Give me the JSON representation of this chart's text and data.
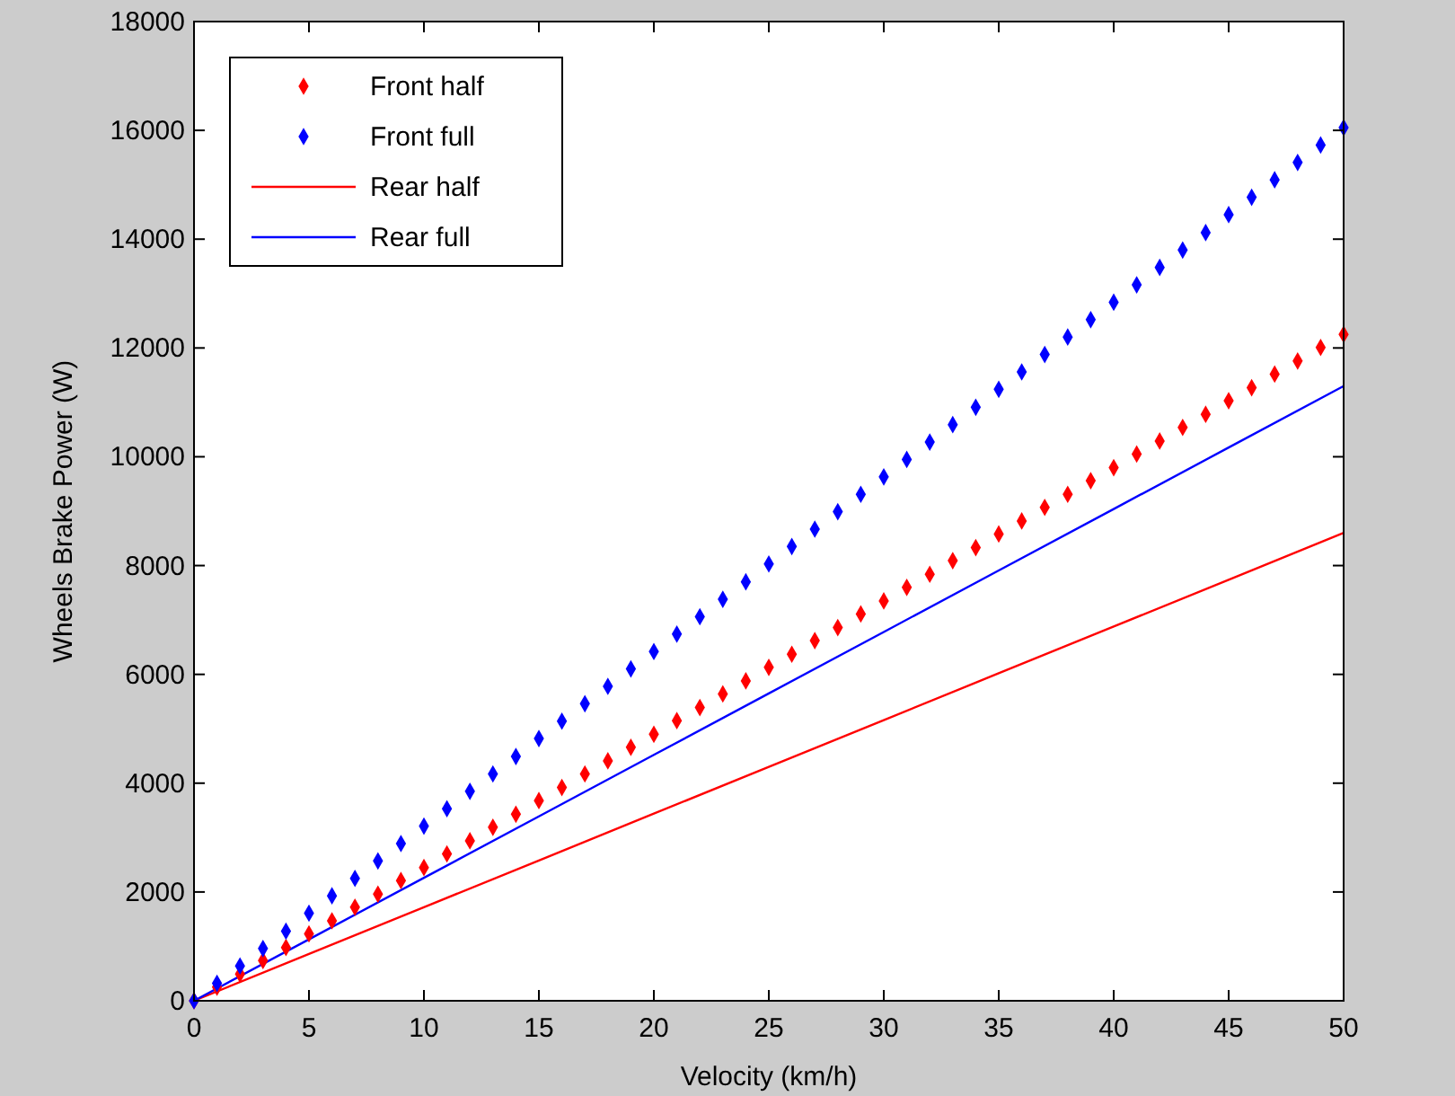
{
  "chart_data": {
    "type": "line",
    "xlabel": "Velocity (km/h)",
    "ylabel": "Wheels Brake Power (W)",
    "xlim": [
      0,
      50
    ],
    "ylim": [
      0,
      18000
    ],
    "xticks": [
      0,
      5,
      10,
      15,
      20,
      25,
      30,
      35,
      40,
      45,
      50
    ],
    "yticks": [
      0,
      2000,
      4000,
      6000,
      8000,
      10000,
      12000,
      14000,
      16000,
      18000
    ],
    "legend": "top left",
    "grid": false,
    "series": [
      {
        "name": "Front half",
        "type": "scatter",
        "marker": "diamond",
        "color": "#ff0000",
        "x": [
          0,
          1,
          2,
          3,
          4,
          5,
          6,
          7,
          8,
          9,
          10,
          11,
          12,
          13,
          14,
          15,
          16,
          17,
          18,
          19,
          20,
          21,
          22,
          23,
          24,
          25,
          26,
          27,
          28,
          29,
          30,
          31,
          32,
          33,
          34,
          35,
          36,
          37,
          38,
          39,
          40,
          41,
          42,
          43,
          44,
          45,
          46,
          47,
          48,
          49,
          50
        ],
        "values": [
          0,
          250,
          490,
          740,
          980,
          1230,
          1470,
          1720,
          1960,
          2210,
          2450,
          2700,
          2940,
          3190,
          3430,
          3680,
          3920,
          4170,
          4410,
          4660,
          4900,
          5150,
          5390,
          5640,
          5880,
          6130,
          6370,
          6620,
          6860,
          7110,
          7350,
          7600,
          7840,
          8090,
          8330,
          8580,
          8820,
          9070,
          9310,
          9560,
          9800,
          10050,
          10290,
          10540,
          10780,
          11030,
          11270,
          11520,
          11760,
          12010,
          12250
        ]
      },
      {
        "name": "Front full",
        "type": "scatter",
        "marker": "diamond",
        "color": "#0000ff",
        "x": [
          0,
          1,
          2,
          3,
          4,
          5,
          6,
          7,
          8,
          9,
          10,
          11,
          12,
          13,
          14,
          15,
          16,
          17,
          18,
          19,
          20,
          21,
          22,
          23,
          24,
          25,
          26,
          27,
          28,
          29,
          30,
          31,
          32,
          33,
          34,
          35,
          36,
          37,
          38,
          39,
          40,
          41,
          42,
          43,
          44,
          45,
          46,
          47,
          48,
          49,
          50
        ],
        "values": [
          0,
          320,
          640,
          960,
          1280,
          1610,
          1930,
          2250,
          2570,
          2890,
          3210,
          3530,
          3850,
          4170,
          4490,
          4820,
          5140,
          5460,
          5780,
          6100,
          6420,
          6740,
          7060,
          7380,
          7700,
          8030,
          8350,
          8670,
          8990,
          9310,
          9630,
          9950,
          10270,
          10590,
          10910,
          11240,
          11560,
          11880,
          12200,
          12520,
          12840,
          13160,
          13480,
          13800,
          14120,
          14450,
          14770,
          15090,
          15410,
          15730,
          16050
        ]
      },
      {
        "name": "Rear half",
        "marker": "none",
        "line_style": "solid",
        "color": "#ff0000",
        "x": [
          0,
          5,
          10,
          15,
          20,
          25,
          30,
          35,
          40,
          45,
          50
        ],
        "values": [
          0,
          860,
          1720,
          2580,
          3440,
          4300,
          5160,
          6020,
          6880,
          7740,
          8600
        ]
      },
      {
        "name": "Rear full",
        "marker": "none",
        "line_style": "solid",
        "color": "#0000ff",
        "x": [
          0,
          5,
          10,
          15,
          20,
          25,
          30,
          35,
          40,
          45,
          50
        ],
        "values": [
          0,
          1130,
          2260,
          3390,
          4520,
          5650,
          6780,
          7910,
          9040,
          10170,
          11300
        ]
      }
    ]
  }
}
